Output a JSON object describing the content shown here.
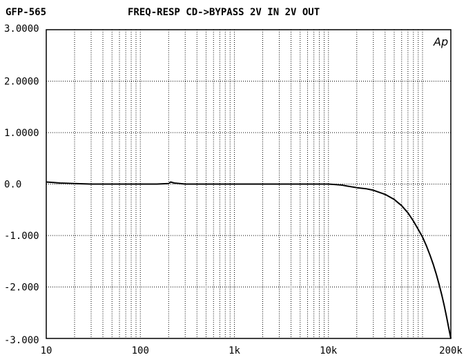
{
  "header": {
    "device_label": "GFP-565",
    "title": "FREQ-RESP CD->BYPASS 2V IN 2V OUT",
    "corner_mark": "Ap"
  },
  "chart_data": {
    "type": "line",
    "title": "FREQ-RESP CD->BYPASS 2V IN 2V OUT",
    "xscale": "log",
    "xlim": [
      10,
      200000
    ],
    "ylim": [
      -3.0,
      3.0
    ],
    "y_ticks": [
      3.0,
      2.0,
      1.0,
      0.0,
      -1.0,
      -2.0,
      -3.0
    ],
    "y_tick_labels": [
      "3.0000",
      "2.0000",
      "1.0000",
      "0.0",
      "-1.000",
      "-2.000",
      "-3.000"
    ],
    "x_ticks": [
      10,
      100,
      1000,
      10000,
      200000
    ],
    "x_tick_labels": [
      "10",
      "100",
      "1k",
      "10k",
      "200k"
    ],
    "grid": true,
    "series": [
      {
        "name": "",
        "color": "#000000",
        "x": [
          10,
          12,
          14,
          20,
          30,
          50,
          100,
          150,
          200,
          210,
          230,
          300,
          500,
          1000,
          2000,
          5000,
          10000,
          12000,
          14000,
          16000,
          20000,
          25000,
          30000,
          40000,
          50000,
          60000,
          70000,
          80000,
          90000,
          100000,
          110000,
          120000,
          130000,
          140000,
          150000,
          160000,
          170000,
          180000,
          190000,
          200000
        ],
        "y": [
          0.04,
          0.03,
          0.02,
          0.01,
          0.0,
          0.0,
          0.0,
          0.0,
          0.01,
          0.04,
          0.02,
          0.0,
          0.0,
          0.0,
          0.0,
          0.0,
          0.0,
          -0.01,
          -0.02,
          -0.04,
          -0.07,
          -0.09,
          -0.12,
          -0.2,
          -0.3,
          -0.42,
          -0.56,
          -0.72,
          -0.88,
          -1.03,
          -1.2,
          -1.38,
          -1.56,
          -1.75,
          -1.95,
          -2.15,
          -2.36,
          -2.58,
          -2.8,
          -3.0
        ]
      }
    ]
  }
}
